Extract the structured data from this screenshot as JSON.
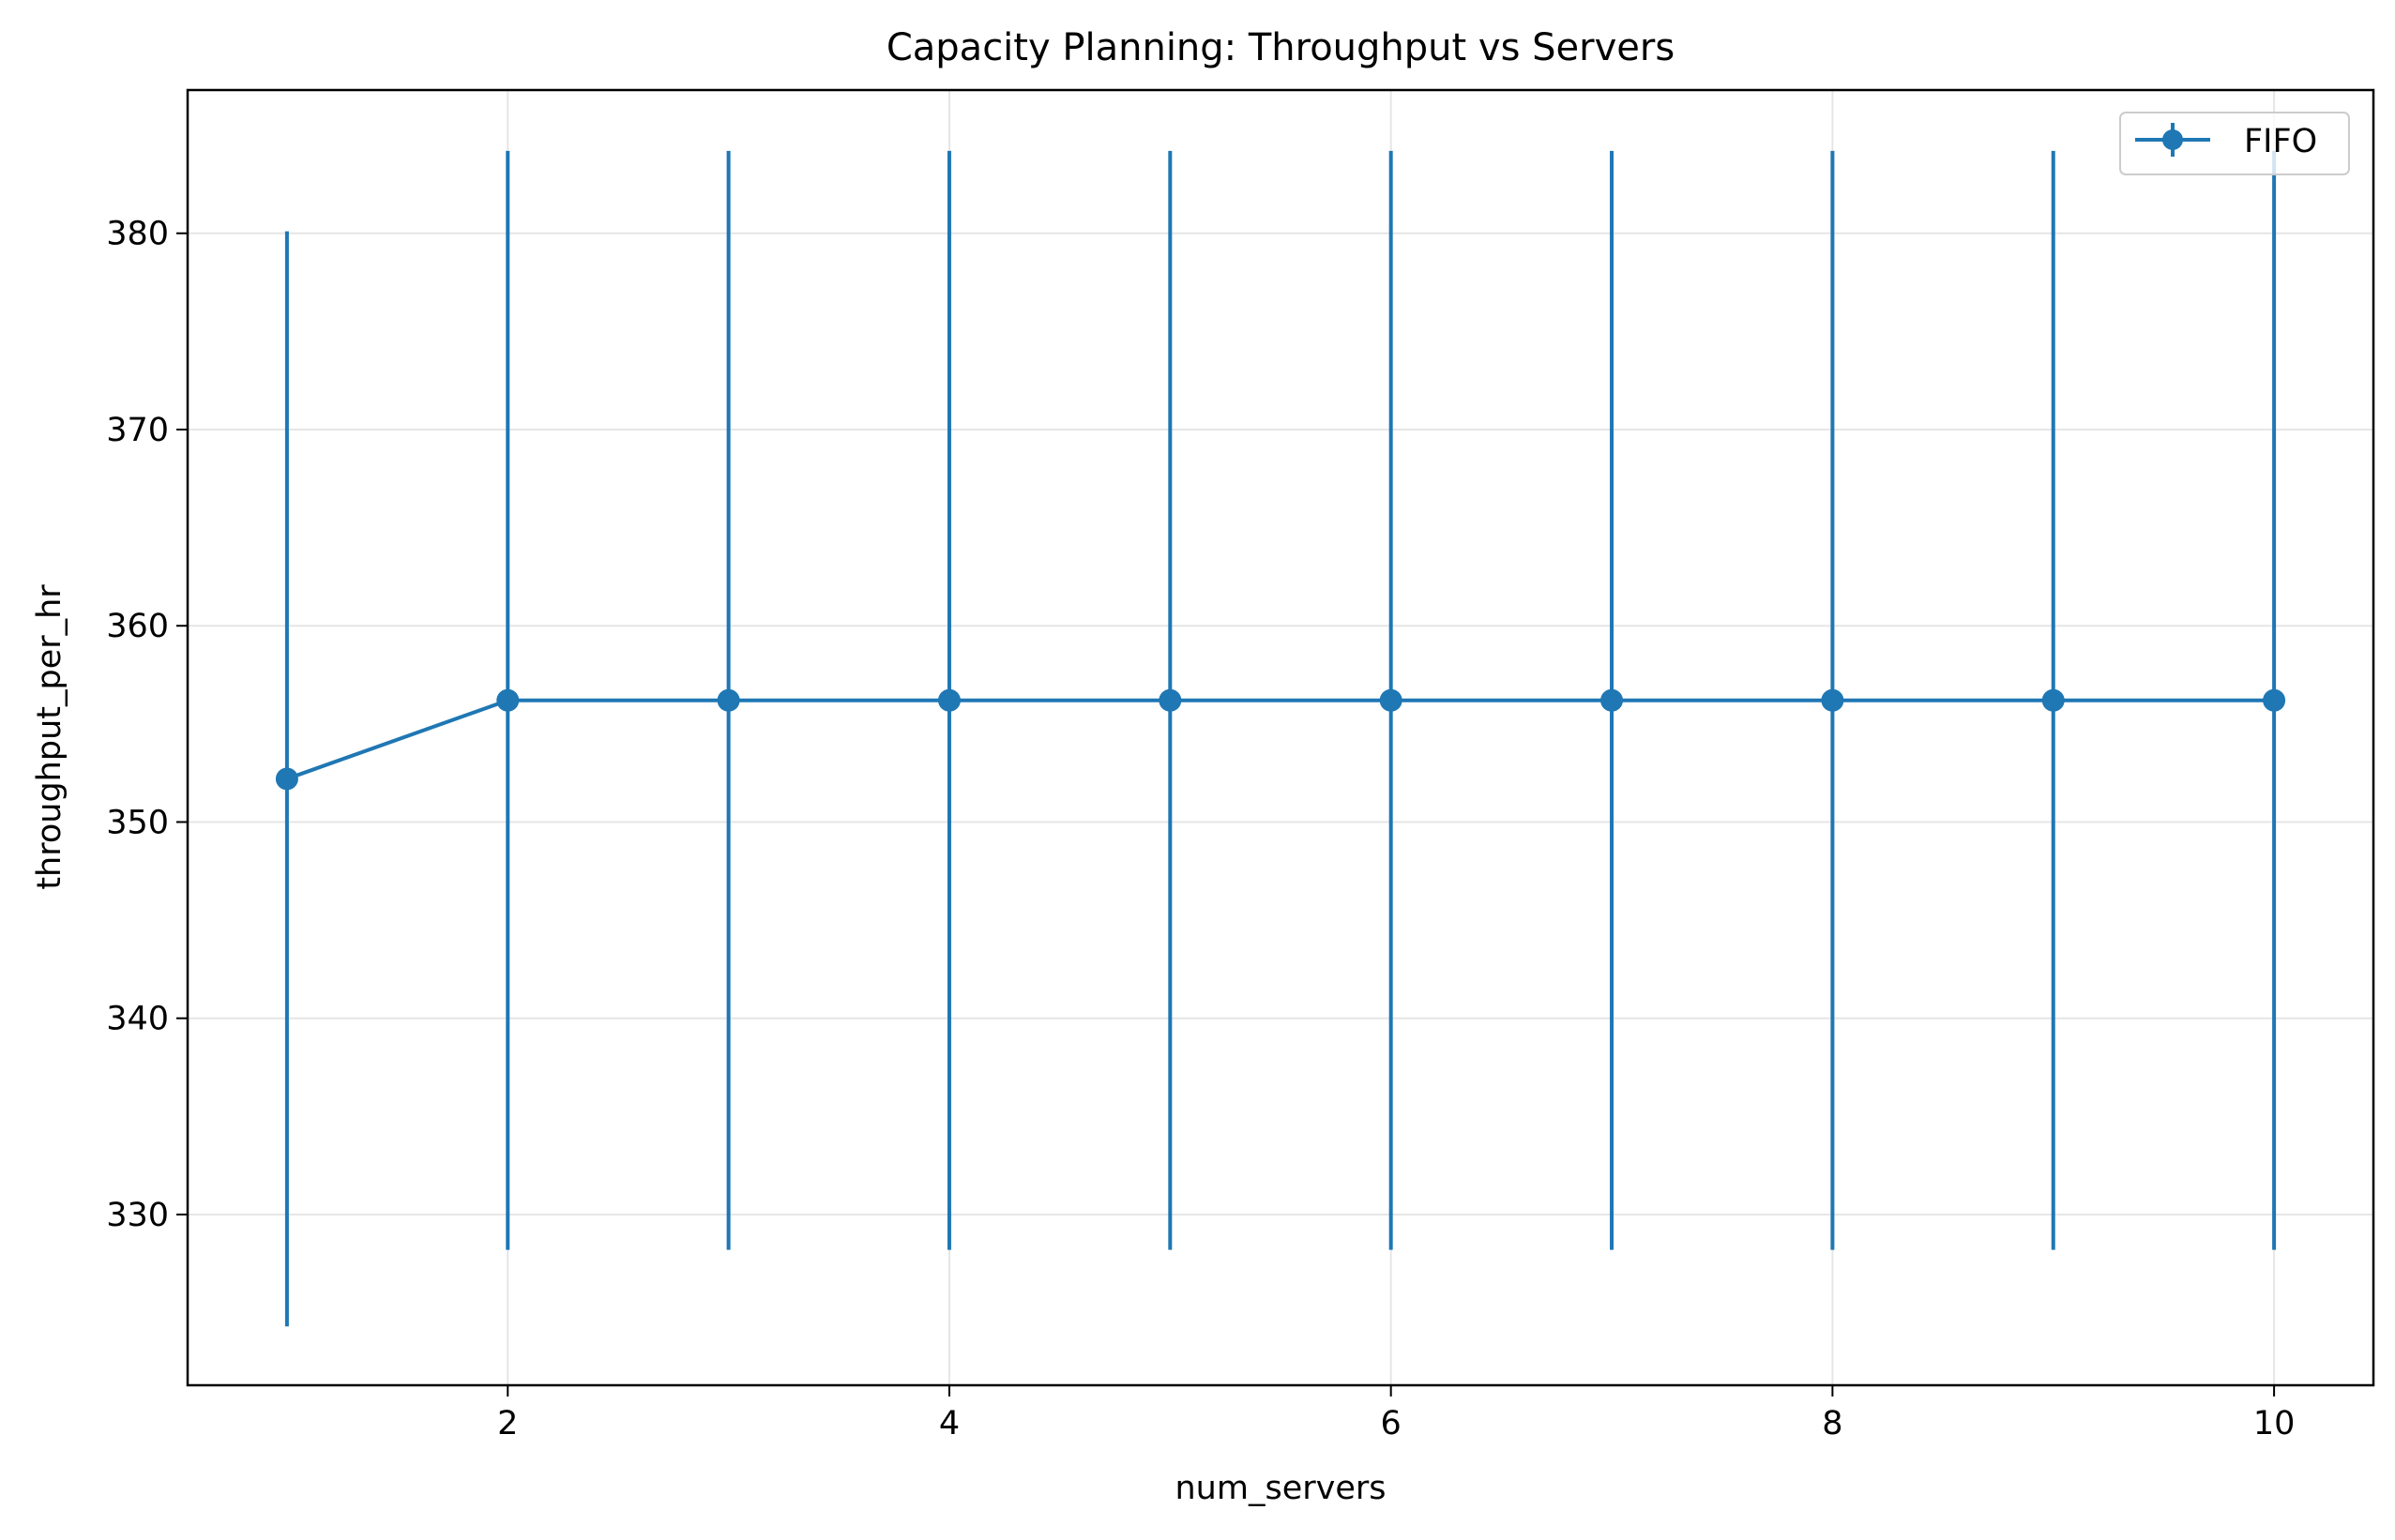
{
  "chart_data": {
    "type": "line",
    "title": "Capacity Planning: Throughput vs Servers",
    "xlabel": "num_servers",
    "ylabel": "throughput_per_hr",
    "xlim": [
      0.55,
      10.45
    ],
    "ylim": [
      321.3,
      387.3
    ],
    "x_ticks": [
      2,
      4,
      6,
      8,
      10
    ],
    "y_ticks": [
      330,
      340,
      350,
      360,
      370,
      380
    ],
    "grid": true,
    "legend_position": "top-right",
    "color": "#1f77b4",
    "series": [
      {
        "name": "FIFO",
        "x": [
          1,
          2,
          3,
          4,
          5,
          6,
          7,
          8,
          9,
          10
        ],
        "y": [
          352.2,
          356.2,
          356.2,
          356.2,
          356.2,
          356.2,
          356.2,
          356.2,
          356.2,
          356.2
        ],
        "y_err_low": [
          324.3,
          328.2,
          328.2,
          328.2,
          328.2,
          328.2,
          328.2,
          328.2,
          328.2,
          328.2
        ],
        "y_err_high": [
          380.1,
          384.2,
          384.2,
          384.2,
          384.2,
          384.2,
          384.2,
          384.2,
          384.2,
          384.2
        ]
      }
    ]
  }
}
